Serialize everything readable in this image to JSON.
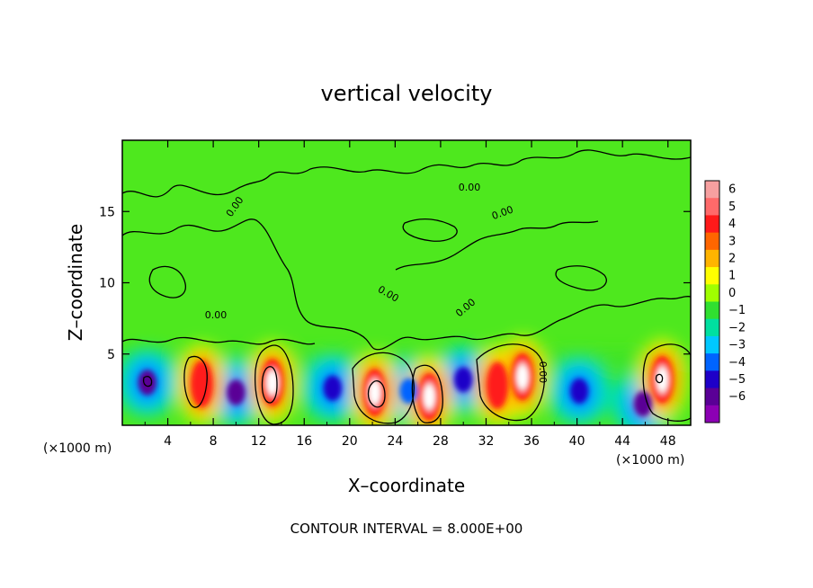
{
  "chart_data": {
    "type": "heatmap",
    "title": "vertical velocity",
    "xlabel": "X–coordinate",
    "ylabel": "Z–coordinate",
    "x_unit_label": "(×1000 m)",
    "x_unit_label_right": "(×1000 m)",
    "xlim": [
      0,
      50
    ],
    "ylim": [
      0,
      20
    ],
    "x_ticks": [
      4,
      8,
      12,
      16,
      20,
      24,
      28,
      32,
      36,
      40,
      44,
      48
    ],
    "y_ticks": [
      5,
      10,
      15
    ],
    "colorbar": {
      "ticks": [
        6,
        5,
        4,
        3,
        2,
        1,
        0,
        -1,
        -2,
        -3,
        -4,
        -5,
        -6
      ],
      "tick_labels": [
        "6",
        "5",
        "4",
        "3",
        "2",
        "1",
        "0",
        "−1",
        "−2",
        "−3",
        "−4",
        "−5",
        "−6"
      ],
      "colors": [
        "#f7a0a0",
        "#ff6a6a",
        "#ff1a1a",
        "#ff6600",
        "#ffb400",
        "#ffff00",
        "#a0ff00",
        "#30e030",
        "#00e0a0",
        "#00c8ff",
        "#0064ff",
        "#1e00c8",
        "#5a0096",
        "#8c00b4"
      ]
    },
    "contour_interval_text": "CONTOUR INTERVAL = 8.000E+00",
    "contour_labels": [
      "0.00",
      "0.00",
      "0.00",
      "0.00",
      "0.00",
      "0.00",
      "0.00"
    ],
    "updraft_cores": [
      {
        "x": 7.0,
        "z": 2.9,
        "w": 3.5
      },
      {
        "x": 13.2,
        "z": 3.0,
        "w": 6.5
      },
      {
        "x": 22.2,
        "z": 2.3,
        "w": 6.5
      },
      {
        "x": 27.0,
        "z": 2.0,
        "w": 6.5
      },
      {
        "x": 33.0,
        "z": 2.8,
        "w": 4.0
      },
      {
        "x": 35.2,
        "z": 3.4,
        "w": 6.0
      },
      {
        "x": 47.5,
        "z": 3.2,
        "w": 6.5
      }
    ],
    "downdraft_cores": [
      {
        "x": 2.2,
        "z": 3.0,
        "w": -6.0
      },
      {
        "x": 10.0,
        "z": 2.3,
        "w": -5.5
      },
      {
        "x": 18.5,
        "z": 2.6,
        "w": -4.5
      },
      {
        "x": 25.2,
        "z": 2.4,
        "w": -4.0
      },
      {
        "x": 30.0,
        "z": 3.2,
        "w": -4.5
      },
      {
        "x": 40.2,
        "z": 2.4,
        "w": -5.0
      },
      {
        "x": 45.8,
        "z": 1.5,
        "w": -5.5
      }
    ]
  }
}
